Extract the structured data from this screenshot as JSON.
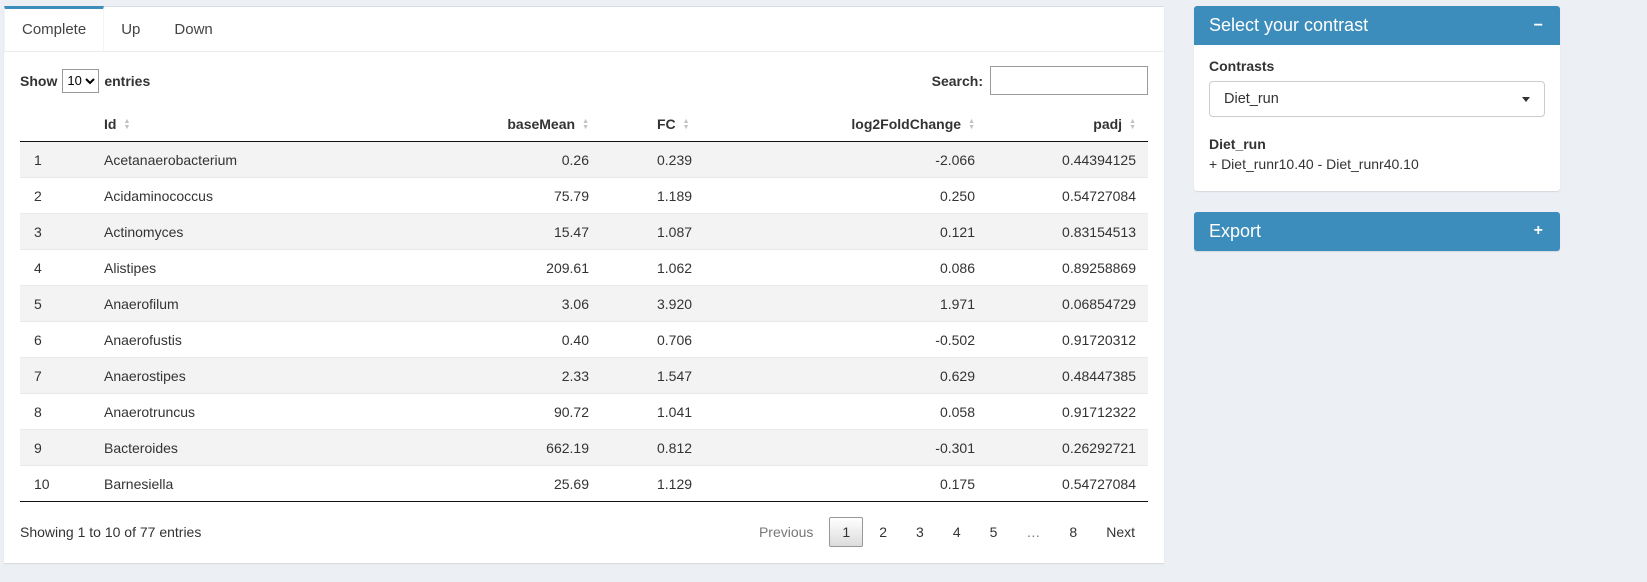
{
  "tabs": {
    "complete": "Complete",
    "up": "Up",
    "down": "Down"
  },
  "table_controls": {
    "show_label": "Show",
    "entries_value": "10",
    "entries_suffix": "entries",
    "search_label": "Search:",
    "search_value": ""
  },
  "table": {
    "columns": [
      {
        "label": "",
        "align": "left",
        "sortable": false
      },
      {
        "label": "Id",
        "align": "left",
        "sortable": true
      },
      {
        "label": "baseMean",
        "align": "right",
        "sortable": true
      },
      {
        "label": "FC",
        "align": "left",
        "sortable": true
      },
      {
        "label": "log2FoldChange",
        "align": "right",
        "sortable": true
      },
      {
        "label": "padj",
        "align": "right",
        "sortable": true
      }
    ],
    "rows": [
      [
        "1",
        "Acetanaerobacterium",
        "0.26",
        "0.239",
        "-2.066",
        "0.44394125"
      ],
      [
        "2",
        "Acidaminococcus",
        "75.79",
        "1.189",
        "0.250",
        "0.54727084"
      ],
      [
        "3",
        "Actinomyces",
        "15.47",
        "1.087",
        "0.121",
        "0.83154513"
      ],
      [
        "4",
        "Alistipes",
        "209.61",
        "1.062",
        "0.086",
        "0.89258869"
      ],
      [
        "5",
        "Anaerofilum",
        "3.06",
        "3.920",
        "1.971",
        "0.06854729"
      ],
      [
        "6",
        "Anaerofustis",
        "0.40",
        "0.706",
        "-0.502",
        "0.91720312"
      ],
      [
        "7",
        "Anaerostipes",
        "2.33",
        "1.547",
        "0.629",
        "0.48447385"
      ],
      [
        "8",
        "Anaerotruncus",
        "90.72",
        "1.041",
        "0.058",
        "0.91712322"
      ],
      [
        "9",
        "Bacteroides",
        "662.19",
        "0.812",
        "-0.301",
        "0.26292721"
      ],
      [
        "10",
        "Barnesiella",
        "25.69",
        "1.129",
        "0.175",
        "0.54727084"
      ]
    ]
  },
  "pagination": {
    "info": "Showing 1 to 10 of 77 entries",
    "previous_label": "Previous",
    "next_label": "Next",
    "pages": [
      "1",
      "2",
      "3",
      "4",
      "5",
      "…",
      "8"
    ],
    "active_page": "1"
  },
  "contrast_box": {
    "title": "Select your contrast",
    "collapse_icon": "−",
    "contrasts_label": "Contrasts",
    "selected_contrast": "Diet_run",
    "detail_name": "Diet_run",
    "detail_formula": "+ Diet_runr10.40 - Diet_runr40.10"
  },
  "export_box": {
    "title": "Export",
    "collapse_icon": "+"
  },
  "colors": {
    "primary": "#3c8dbc",
    "page_background": "#ecf0f5"
  }
}
